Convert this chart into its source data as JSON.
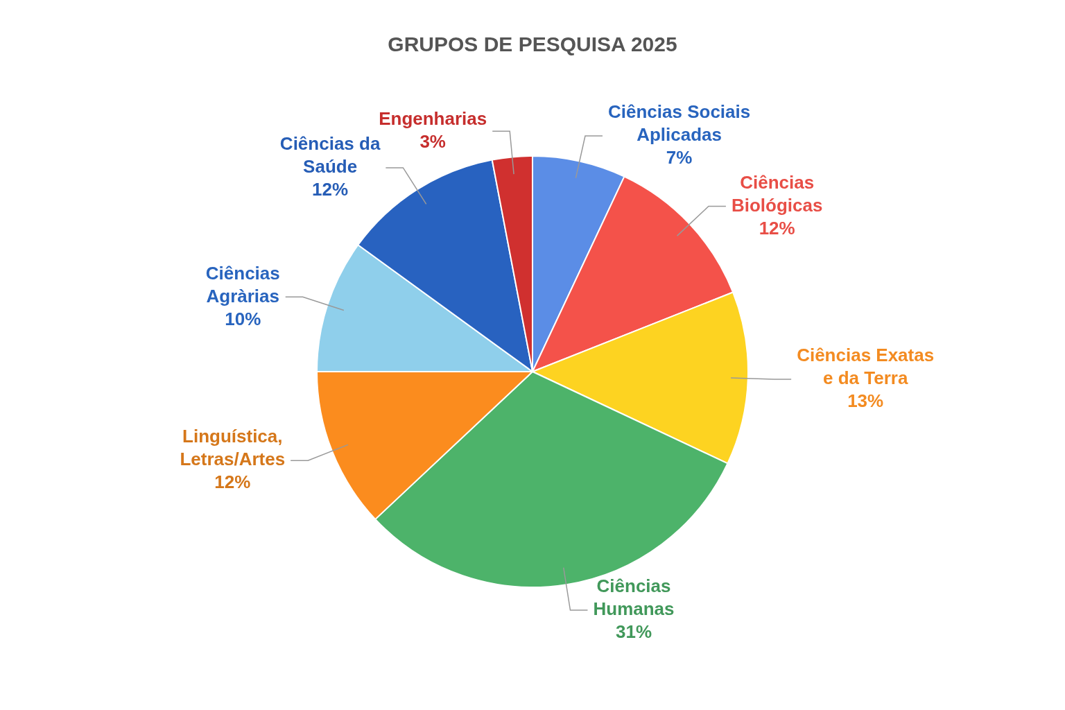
{
  "chart_data": {
    "type": "pie",
    "title": "GRUPOS DE PESQUISA 2025",
    "categories": [
      "Ciências Sociais Aplicadas",
      "Ciências Biológicas",
      "Ciências Exatas e da Terra",
      "Ciências Humanas",
      "Linguística, Letras/Artes",
      "Ciências Agràrias",
      "Ciências da Saúde",
      "Engenharias"
    ],
    "values": [
      7,
      12,
      13,
      31,
      12,
      10,
      12,
      3
    ],
    "colors": [
      "#5b8de6",
      "#f4524a",
      "#fdd321",
      "#4db36a",
      "#fb8c1e",
      "#8fcfeb",
      "#2862c0",
      "#d0302f"
    ],
    "value_labels": [
      "7%",
      "12%",
      "13%",
      "31%",
      "12%",
      "10%",
      "12%",
      "3%"
    ],
    "legend": false
  }
}
